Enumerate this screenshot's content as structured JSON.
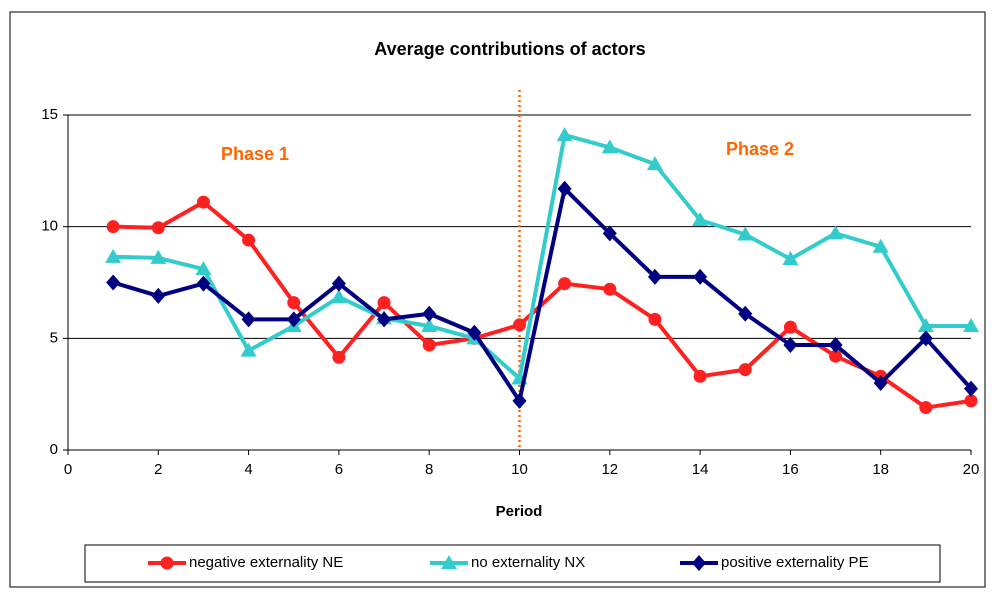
{
  "chart_data": {
    "type": "line",
    "title": "Average contributions of actors",
    "x_label": "Period",
    "x": [
      1,
      2,
      3,
      4,
      5,
      6,
      7,
      8,
      9,
      10,
      11,
      12,
      13,
      14,
      15,
      16,
      17,
      18,
      19,
      20
    ],
    "series": [
      {
        "name": "negative externality NE",
        "color": "#ff2020",
        "marker": "circle",
        "values": [
          10.0,
          9.95,
          11.1,
          9.4,
          6.6,
          4.15,
          6.6,
          4.7,
          5.0,
          5.6,
          7.45,
          7.2,
          5.85,
          3.3,
          3.6,
          5.5,
          4.2,
          3.3,
          1.9,
          2.2
        ]
      },
      {
        "name": "no externality NX",
        "color": "#33cccc",
        "marker": "triangle",
        "values": [
          8.65,
          8.6,
          8.1,
          4.45,
          5.55,
          6.85,
          5.9,
          5.55,
          5.0,
          3.2,
          14.1,
          13.55,
          12.8,
          10.3,
          9.65,
          8.55,
          9.7,
          9.1,
          5.55,
          5.55
        ]
      },
      {
        "name": "positive externality PE",
        "color": "#000080",
        "marker": "diamond",
        "values": [
          7.5,
          6.9,
          7.45,
          5.85,
          5.85,
          7.45,
          5.85,
          6.1,
          5.25,
          2.2,
          11.7,
          9.7,
          7.75,
          7.75,
          6.1,
          4.7,
          4.7,
          3.0,
          5.0,
          2.75
        ]
      }
    ],
    "xlim": [
      0,
      20
    ],
    "xticks": [
      0,
      2,
      4,
      6,
      8,
      10,
      12,
      14,
      16,
      18,
      20
    ],
    "ylim": [
      0,
      15
    ],
    "yticks": [
      0,
      5,
      10,
      15
    ],
    "grid": true,
    "divider_x": 10,
    "divider_color": "#ff6600",
    "annotations": [
      {
        "text": "Phase 1",
        "color": "#ff6600"
      },
      {
        "text": "Phase 2",
        "color": "#ff6600"
      }
    ]
  }
}
